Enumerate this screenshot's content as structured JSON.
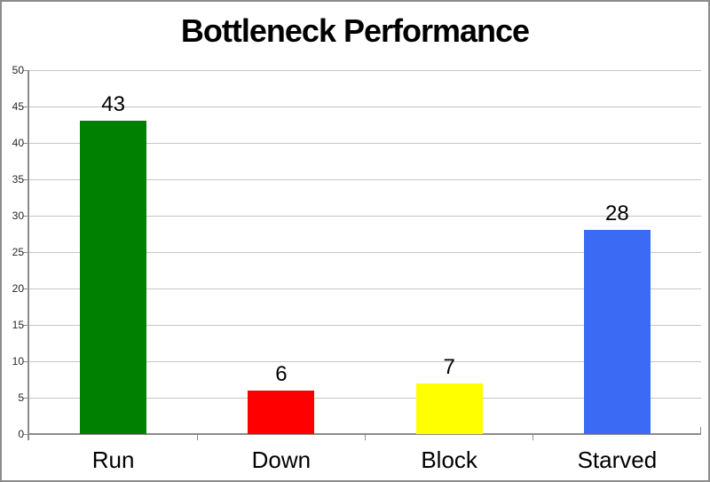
{
  "chart_data": {
    "type": "bar",
    "title": "Bottleneck Performance",
    "categories": [
      "Run",
      "Down",
      "Block",
      "Starved"
    ],
    "values": [
      43,
      6,
      7,
      28
    ],
    "bar_colors": [
      "#008000",
      "#FF0000",
      "#FFFF00",
      "#3B6BF4"
    ],
    "xlabel": "",
    "ylabel": "",
    "ylim": [
      0,
      50
    ],
    "yticks": [
      0,
      5,
      10,
      15,
      20,
      25,
      30,
      35,
      40,
      45,
      50
    ],
    "grid": "horizontal",
    "legend": "none",
    "data_labels_shown": true,
    "colors": {
      "gridline": "#C6C6C6",
      "axis": "#8C8C8C",
      "frame_border": "#8C8C8C",
      "background": "#FFFFFF",
      "text": "#000000"
    }
  }
}
